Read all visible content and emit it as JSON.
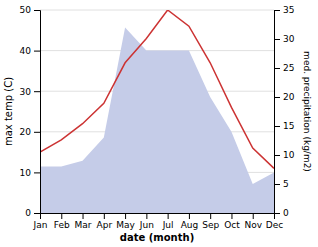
{
  "chart_data": {
    "type": "line",
    "categories": [
      "Jan",
      "Feb",
      "Mar",
      "Apr",
      "May",
      "Jun",
      "Jul",
      "Aug",
      "Sep",
      "Oct",
      "Nov",
      "Dec"
    ],
    "xlabel": "date (month)",
    "ylabel": "max temp (C)",
    "y2label": "med. precipitation (kg/m2)",
    "series": [
      {
        "type": "area",
        "axis": "y2",
        "color": "#c5cce8",
        "values": [
          8,
          8,
          9,
          13,
          32,
          28,
          28,
          28,
          20,
          14,
          5,
          7
        ]
      },
      {
        "type": "line",
        "color": "#cc3333",
        "values": [
          15,
          18,
          22,
          27,
          37,
          43,
          50,
          46,
          37,
          26,
          16,
          11
        ]
      }
    ],
    "ylim": [
      0,
      50
    ],
    "yticks": [
      0,
      10,
      20,
      30,
      40,
      50
    ],
    "y2lim": [
      0,
      35
    ],
    "y2ticks": [
      0,
      5,
      10,
      15,
      20,
      25,
      30,
      35
    ],
    "grid": true
  }
}
